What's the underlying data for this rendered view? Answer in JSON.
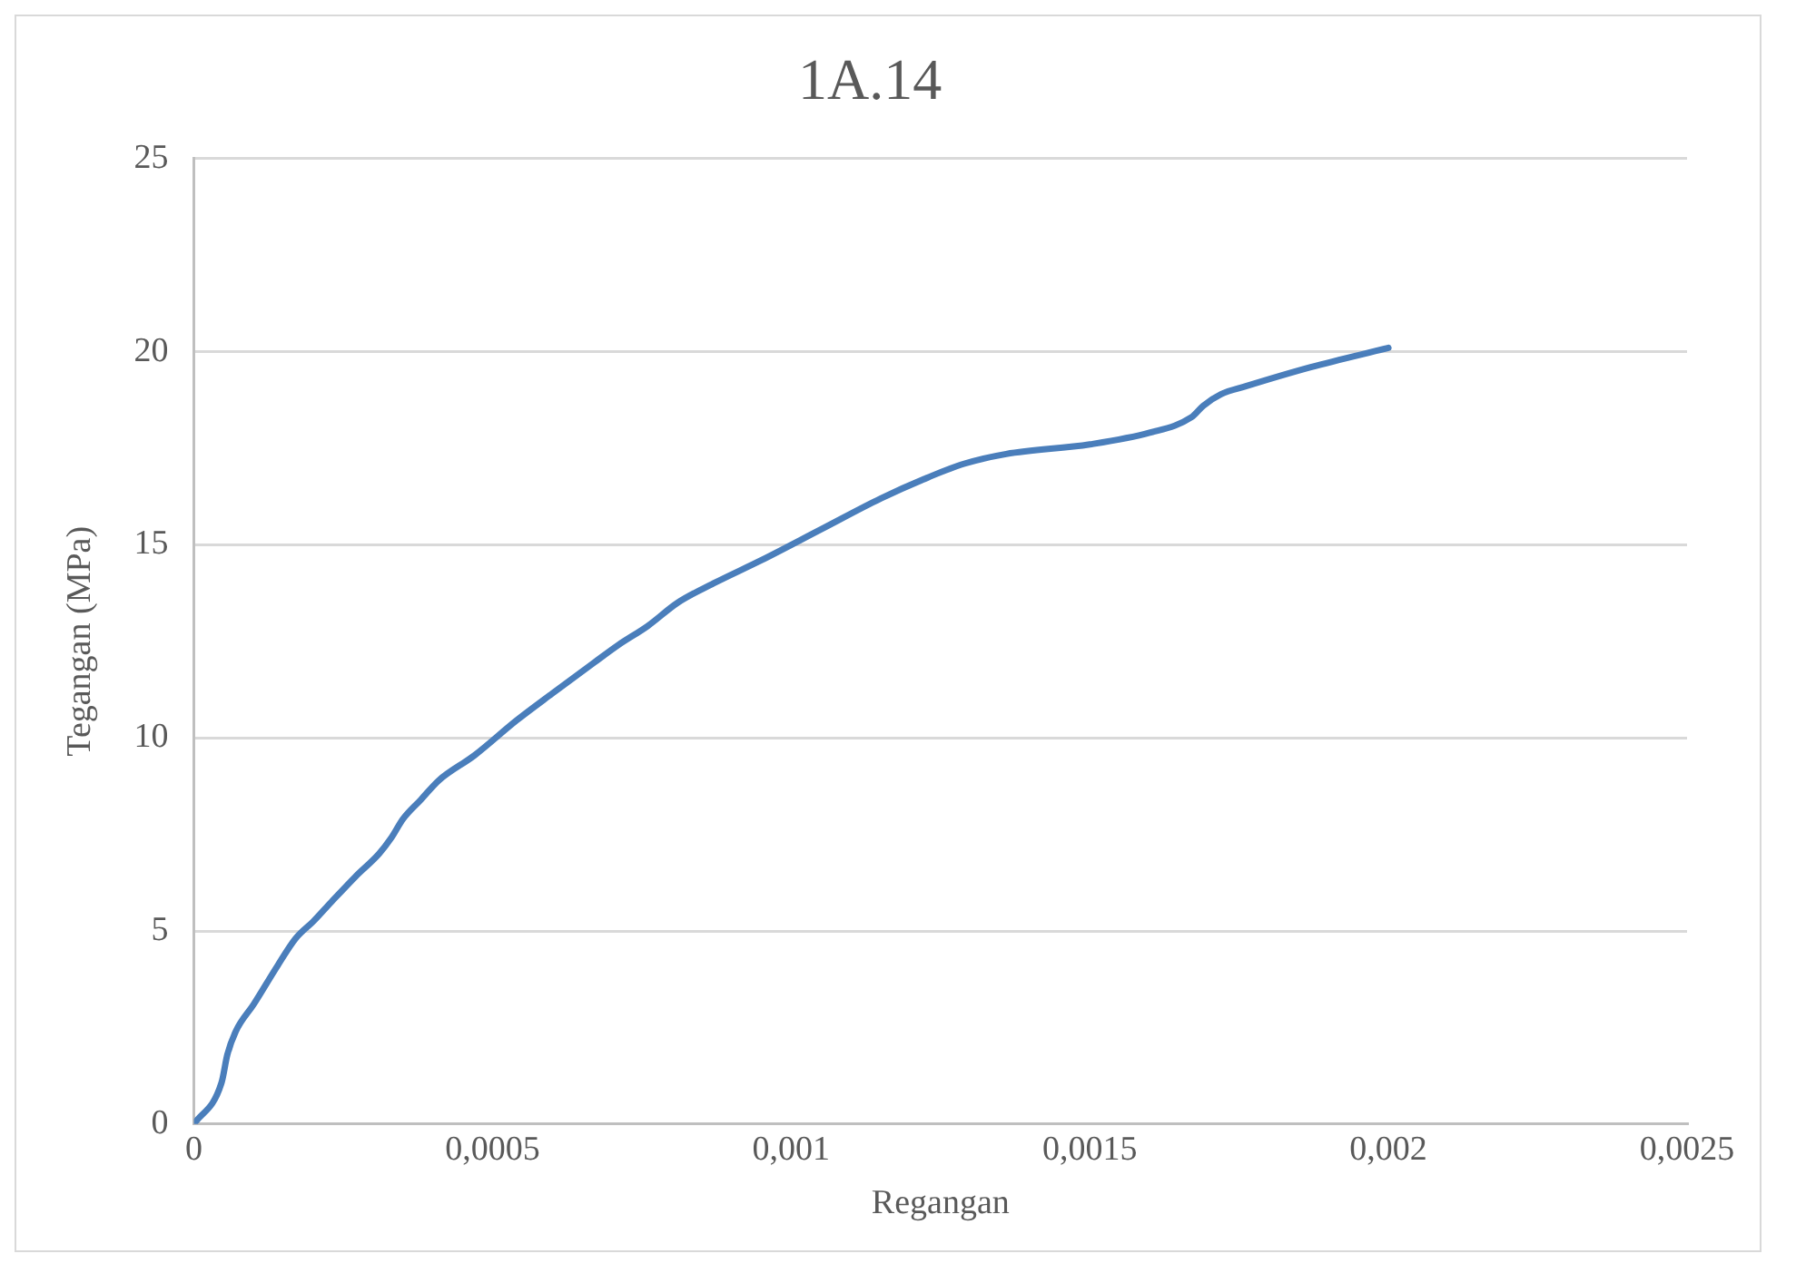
{
  "chart_data": {
    "type": "line",
    "title": "1A.14",
    "xlabel": "Regangan",
    "ylabel": "Tegangan (MPa)",
    "xlim": [
      0,
      0.0025
    ],
    "xticks": [
      {
        "value": 0,
        "label": "0"
      },
      {
        "value": 0.0005,
        "label": "0,0005"
      },
      {
        "value": 0.001,
        "label": "0,001"
      },
      {
        "value": 0.0015,
        "label": "0,0015"
      },
      {
        "value": 0.002,
        "label": "0,002"
      },
      {
        "value": 0.0025,
        "label": "0,0025"
      }
    ],
    "ylim": [
      0,
      25
    ],
    "yticks": [
      0,
      5,
      10,
      15,
      20,
      25
    ],
    "grid": "y",
    "legend": false,
    "marker": "none",
    "line_style": "solid",
    "series": [
      {
        "color": "#4a7ebb",
        "x": [
          0,
          4.6e-05,
          5.6e-05,
          7e-05,
          0.0001,
          0.00014,
          0.00017,
          0.0002,
          0.00023,
          0.00027,
          0.00031,
          0.00033,
          0.00035,
          0.00038,
          0.00041,
          0.00047,
          0.00054,
          0.0006,
          0.00067,
          0.00071,
          0.00076,
          0.00081,
          0.00087,
          0.00095,
          0.00105,
          0.00115,
          0.00123,
          0.00129,
          0.00136,
          0.0015,
          0.0016,
          0.00167,
          0.00169,
          0.00172,
          0.00176,
          0.00187,
          0.002
        ],
        "values": [
          0,
          1.06,
          1.8,
          2.4,
          3.1,
          4.1,
          4.8,
          5.25,
          5.75,
          6.4,
          7.0,
          7.4,
          7.9,
          8.4,
          8.9,
          9.55,
          10.45,
          11.15,
          11.95,
          12.4,
          12.9,
          13.5,
          14.0,
          14.6,
          15.4,
          16.2,
          16.75,
          17.1,
          17.35,
          17.6,
          17.9,
          18.3,
          18.6,
          18.9,
          19.1,
          19.6,
          20.1
        ]
      }
    ]
  }
}
